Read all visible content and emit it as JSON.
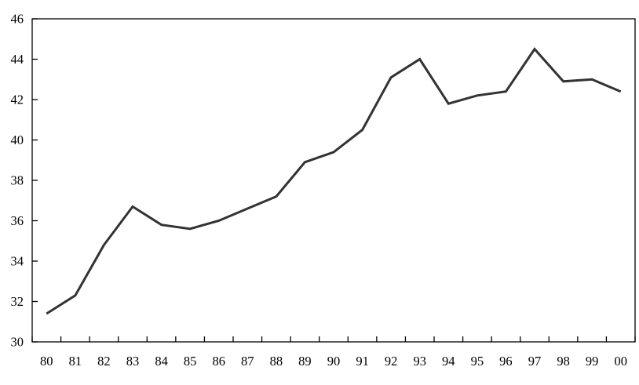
{
  "chart_data": {
    "type": "line",
    "title": "",
    "xlabel": "",
    "ylabel": "",
    "categories": [
      "80",
      "81",
      "82",
      "83",
      "84",
      "85",
      "86",
      "87",
      "88",
      "89",
      "90",
      "91",
      "92",
      "93",
      "94",
      "95",
      "96",
      "97",
      "98",
      "99",
      "00"
    ],
    "values": [
      31.4,
      32.3,
      34.8,
      36.7,
      35.8,
      35.6,
      36.0,
      36.6,
      37.2,
      38.9,
      39.4,
      40.5,
      43.1,
      44.0,
      41.8,
      42.2,
      42.4,
      44.5,
      42.9,
      43.0,
      42.4
    ],
    "ylim": [
      30,
      46
    ],
    "ytick_step": 2,
    "ytick_labels": [
      "30",
      "32",
      "34",
      "36",
      "38",
      "40",
      "42",
      "44",
      "46"
    ],
    "grid": false,
    "legend": "none",
    "line_color": "#333333",
    "axis_color": "#000000",
    "background_color": "#ffffff"
  }
}
